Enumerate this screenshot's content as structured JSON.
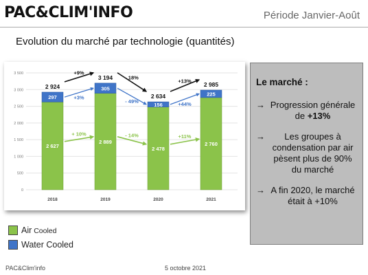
{
  "header": {
    "logo_left": "PAC",
    "logo_amp": "&",
    "logo_right": "CLIM'INFO",
    "period": "Période Janvier-Août"
  },
  "main_title": "Evolution du marché par technologie (quantités)",
  "chart_data": {
    "type": "bar",
    "stacked": true,
    "categories": [
      "2018",
      "2019",
      "2020",
      "2021"
    ],
    "series": [
      {
        "name": "Air Cooled",
        "values": [
          2627,
          2889,
          2478,
          2760
        ],
        "color": "#8bc34a"
      },
      {
        "name": "Water Cooled",
        "values": [
          297,
          305,
          156,
          225
        ],
        "color": "#3f74c8"
      }
    ],
    "totals": [
      2924,
      3194,
      2634,
      2985
    ],
    "total_labels": [
      "2 924",
      "3 194",
      "2 634",
      "2 985"
    ],
    "air_labels": [
      "2 627",
      "2 889",
      "2 478",
      "2 760"
    ],
    "water_labels": [
      "297",
      "305",
      "156",
      "225"
    ],
    "ylim": [
      0,
      3500
    ],
    "yticks": [
      0,
      500,
      1000,
      1500,
      2000,
      2500,
      3000,
      3500
    ],
    "ytick_labels": [
      "0",
      "500",
      "1 000",
      "1 500",
      "2 000",
      "2 500",
      "3 000",
      "3 500"
    ],
    "grid": true,
    "total_growth": [
      "+9%",
      "- 18%",
      "+13%"
    ],
    "water_growth": [
      "+3%",
      "- 49%",
      "+44%"
    ],
    "air_growth": [
      "+ 10%",
      "- 14%",
      "+11%"
    ],
    "colors": {
      "total": "#111111",
      "water": "#3f74c8",
      "air": "#8bc34a"
    }
  },
  "market_box": {
    "title": "Le marché :",
    "bullets": [
      {
        "arrow": "→",
        "text": "Progression générale de ",
        "bold": "+13%"
      },
      {
        "arrow": "→",
        "text": "Les groupes à condensation par air pèsent plus de 90% du marché",
        "bold": ""
      },
      {
        "arrow": "→",
        "text": "A fin 2020, le marché était à +10%",
        "bold": ""
      }
    ]
  },
  "legend": [
    {
      "label": "Air",
      "suffix": " Cooled",
      "color": "#8bc34a"
    },
    {
      "label": "Water Cooled",
      "suffix": "",
      "color": "#3f74c8"
    }
  ],
  "footer": {
    "left": "PAC&Clim'info",
    "date": "5 octobre 2021"
  }
}
